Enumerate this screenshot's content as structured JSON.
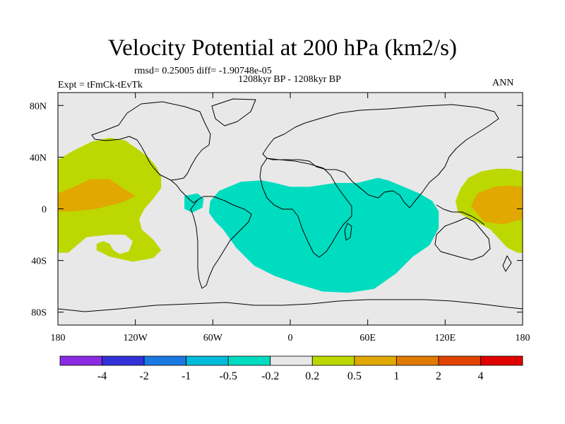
{
  "title": "Velocity Potential at 200 hPa (km2/s)",
  "rmsd_text": "rmsd= 0.25005 diff= -1.90748e-05",
  "period_text": "1208kyr BP - 1208kyr BP",
  "expt_text": "Expt = tFmCk-tEvTk",
  "season": "ANN",
  "map": {
    "lon_range": [
      -180,
      180
    ],
    "lat_range": [
      -90,
      90
    ],
    "background_color": "#e8e8e8",
    "lat_ticks": [
      {
        "value": 80,
        "label": "80N"
      },
      {
        "value": 40,
        "label": "40N"
      },
      {
        "value": 0,
        "label": "0"
      },
      {
        "value": -40,
        "label": "40S"
      },
      {
        "value": -80,
        "label": "80S"
      }
    ],
    "lon_ticks": [
      {
        "value": -180,
        "label": "180"
      },
      {
        "value": -120,
        "label": "120W"
      },
      {
        "value": -60,
        "label": "60W"
      },
      {
        "value": 0,
        "label": "0"
      },
      {
        "value": 60,
        "label": "60E"
      },
      {
        "value": 120,
        "label": "120E"
      },
      {
        "value": 180,
        "label": "180"
      }
    ]
  },
  "colorbar": {
    "colors": [
      "#8a2be2",
      "#3232d8",
      "#1a78e0",
      "#00bcd8",
      "#00dcc0",
      "#e8e8e8",
      "#bcd800",
      "#e0a800",
      "#e07a00",
      "#e04400",
      "#e00000"
    ],
    "labels": [
      "-4",
      "-2",
      "-1",
      "-0.5",
      "-0.2",
      "0.2",
      "0.5",
      "1",
      "2",
      "4"
    ]
  },
  "chart_data": {
    "type": "contour-map",
    "variable": "Velocity Potential at 200 hPa",
    "units": "km2/s",
    "levels": [
      -4,
      -2,
      -1,
      -0.5,
      -0.2,
      0.2,
      0.5,
      1,
      2,
      4
    ],
    "regions": [
      {
        "name": "east-pacific-positive",
        "class": "0.2 to 0.5",
        "color": "#bcd800",
        "points": [
          [
            -180,
            38
          ],
          [
            -168,
            45
          ],
          [
            -154,
            52
          ],
          [
            -140,
            55
          ],
          [
            -128,
            53
          ],
          [
            -118,
            46
          ],
          [
            -110,
            40
          ],
          [
            -104,
            33
          ],
          [
            -100,
            25
          ],
          [
            -100,
            16
          ],
          [
            -106,
            8
          ],
          [
            -113,
            0
          ],
          [
            -117,
            -8
          ],
          [
            -115,
            -16
          ],
          [
            -106,
            -24
          ],
          [
            -100,
            -32
          ],
          [
            -106,
            -38
          ],
          [
            -122,
            -41
          ],
          [
            -140,
            -37
          ],
          [
            -150,
            -32
          ],
          [
            -150,
            -27
          ],
          [
            -145,
            -25
          ],
          [
            -140,
            -27
          ],
          [
            -137,
            -32
          ],
          [
            -132,
            -35
          ],
          [
            -125,
            -33
          ],
          [
            -122,
            -25
          ],
          [
            -128,
            -20
          ],
          [
            -140,
            -20
          ],
          [
            -158,
            -22
          ],
          [
            -172,
            -34
          ],
          [
            -180,
            -34
          ]
        ]
      },
      {
        "name": "east-pacific-core",
        "class": "0.5 to 1",
        "color": "#e0a800",
        "points": [
          [
            -180,
            12
          ],
          [
            -170,
            16
          ],
          [
            -155,
            23
          ],
          [
            -140,
            23
          ],
          [
            -128,
            15
          ],
          [
            -120,
            10
          ],
          [
            -130,
            5
          ],
          [
            -150,
            0
          ],
          [
            -168,
            -2
          ],
          [
            -180,
            -2
          ]
        ]
      },
      {
        "name": "south-america-small-negative",
        "class": "-0.5 to -0.2",
        "color": "#00dcc0",
        "points": [
          [
            -82,
            10
          ],
          [
            -72,
            12
          ],
          [
            -67,
            8
          ],
          [
            -68,
            1
          ],
          [
            -76,
            -3
          ],
          [
            -82,
            0
          ]
        ]
      },
      {
        "name": "atlantic-indian-negative",
        "class": "-0.5 to -0.2",
        "color": "#00dcc0",
        "points": [
          [
            -62,
            6
          ],
          [
            -55,
            14
          ],
          [
            -38,
            21
          ],
          [
            -22,
            22
          ],
          [
            -12,
            20
          ],
          [
            0,
            17
          ],
          [
            15,
            17
          ],
          [
            35,
            20
          ],
          [
            52,
            20
          ],
          [
            68,
            24
          ],
          [
            76,
            22
          ],
          [
            88,
            17
          ],
          [
            100,
            12
          ],
          [
            110,
            6
          ],
          [
            115,
            -2
          ],
          [
            115,
            -15
          ],
          [
            108,
            -28
          ],
          [
            95,
            -37
          ],
          [
            82,
            -50
          ],
          [
            65,
            -62
          ],
          [
            45,
            -65
          ],
          [
            25,
            -64
          ],
          [
            5,
            -58
          ],
          [
            -12,
            -52
          ],
          [
            -28,
            -44
          ],
          [
            -42,
            -30
          ],
          [
            -52,
            -16
          ],
          [
            -58,
            -10
          ],
          [
            -63,
            -3
          ]
        ]
      },
      {
        "name": "west-pacific-positive",
        "class": "0.2 to 0.5",
        "color": "#bcd800",
        "points": [
          [
            180,
            29
          ],
          [
            170,
            31
          ],
          [
            160,
            31
          ],
          [
            148,
            29
          ],
          [
            138,
            24
          ],
          [
            132,
            16
          ],
          [
            128,
            6
          ],
          [
            130,
            -3
          ],
          [
            140,
            -8
          ],
          [
            155,
            -16
          ],
          [
            168,
            -30
          ],
          [
            176,
            -34
          ],
          [
            180,
            -34
          ]
        ]
      },
      {
        "name": "west-pacific-core",
        "class": "0.5 to 1",
        "color": "#e0a800",
        "points": [
          [
            180,
            17
          ],
          [
            170,
            18
          ],
          [
            158,
            17
          ],
          [
            145,
            12
          ],
          [
            140,
            2
          ],
          [
            150,
            -10
          ],
          [
            165,
            -12
          ],
          [
            180,
            -8
          ]
        ]
      }
    ]
  }
}
